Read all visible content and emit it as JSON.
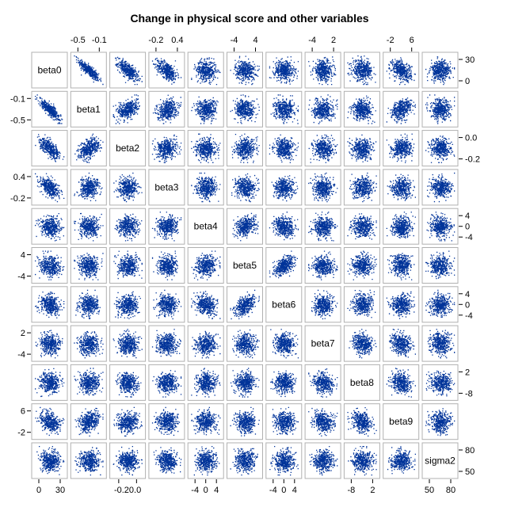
{
  "chart_data": {
    "type": "scatter-matrix",
    "title": "Change in physical score and other variables",
    "variables": [
      "beta0",
      "beta1",
      "beta2",
      "beta3",
      "beta4",
      "beta5",
      "beta6",
      "beta7",
      "beta8",
      "beta9",
      "sigma2"
    ],
    "axis_ticks": {
      "beta0": [
        "0",
        "30"
      ],
      "beta1": [
        "-0.5",
        "-0.1"
      ],
      "beta2": [
        "-0.2",
        "0.0"
      ],
      "beta3": [
        "-0.2",
        "0.4"
      ],
      "beta4": [
        "-4",
        "0",
        "4"
      ],
      "beta5": [
        "-4",
        "4"
      ],
      "beta6": [
        "-4",
        "0",
        "4"
      ],
      "beta7": [
        "-4",
        "2"
      ],
      "beta8": [
        "-8",
        "2"
      ],
      "beta9": [
        "-2",
        "6"
      ],
      "sigma2": [
        "50",
        "80"
      ]
    },
    "top_axis_ticks_override": {
      "beta2": [
        "-0.2",
        "0.4"
      ]
    },
    "bottom_axis_label_override": {
      "beta2": "-0.20.0"
    },
    "point_color": "#003399",
    "panel_border_color": "#b0b0b0",
    "correlations": {
      "beta0-beta1": -0.85,
      "beta0-beta2": -0.7,
      "beta0-beta3": -0.55,
      "beta0-beta4": -0.1,
      "beta0-beta5": -0.1,
      "beta0-beta6": -0.1,
      "beta0-beta7": -0.05,
      "beta0-beta8": -0.1,
      "beta0-beta9": -0.35,
      "beta1-beta2": 0.4,
      "beta1-beta3": 0.25,
      "beta1-beta9": 0.3,
      "beta2-beta3": 0.15,
      "beta2-beta9": 0.1,
      "beta4-beta5": 0.2,
      "beta5-beta6": 0.5,
      "beta4-beta6": -0.15,
      "beta7-beta8": -0.15,
      "beta8-beta9": -0.3,
      "beta7-beta9": -0.2
    }
  }
}
